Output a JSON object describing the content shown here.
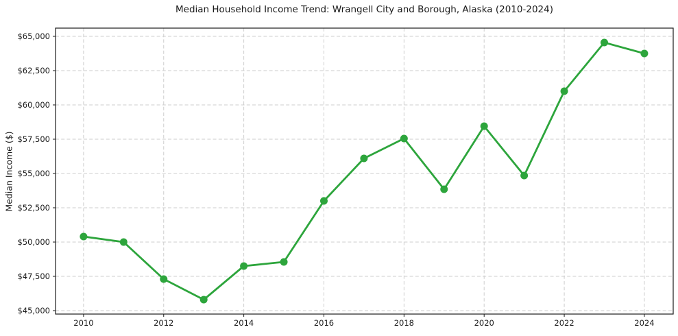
{
  "colors": {
    "line": "#2da53c",
    "marker": "#2da53c",
    "grid": "#cdcdcd",
    "spine": "#1a1a1a",
    "text": "#1a1a1a",
    "background": "#ffffff"
  },
  "chart_data": {
    "type": "line",
    "title": "Median Household Income Trend: Wrangell City and Borough, Alaska (2010-2024)",
    "xlabel": "",
    "ylabel": "Median Income ($)",
    "x": [
      2010,
      2011,
      2012,
      2013,
      2014,
      2015,
      2016,
      2017,
      2018,
      2019,
      2020,
      2021,
      2022,
      2023,
      2024
    ],
    "series": [
      {
        "name": "Median Household Income",
        "values": [
          50400,
          50000,
          47300,
          45800,
          48250,
          48550,
          53000,
          56100,
          57550,
          53850,
          58450,
          54850,
          61000,
          64550,
          63750
        ],
        "color": "#2da53c",
        "marker": "circle"
      }
    ],
    "xlim": [
      2009.3,
      2024.72
    ],
    "ylim": [
      44750,
      65600
    ],
    "x_ticks": [
      2010,
      2012,
      2014,
      2016,
      2018,
      2020,
      2022,
      2024
    ],
    "x_tick_labels": [
      "2010",
      "2012",
      "2014",
      "2016",
      "2018",
      "2020",
      "2022",
      "2024"
    ],
    "y_ticks": [
      45000,
      47500,
      50000,
      52500,
      55000,
      57500,
      60000,
      62500,
      65000
    ],
    "y_tick_labels": [
      "$45,000",
      "$47,500",
      "$50,000",
      "$52,500",
      "$55,000",
      "$57,500",
      "$60,000",
      "$62,500",
      "$65,000"
    ],
    "grid": true,
    "grid_style": "dashed",
    "legend": false
  }
}
